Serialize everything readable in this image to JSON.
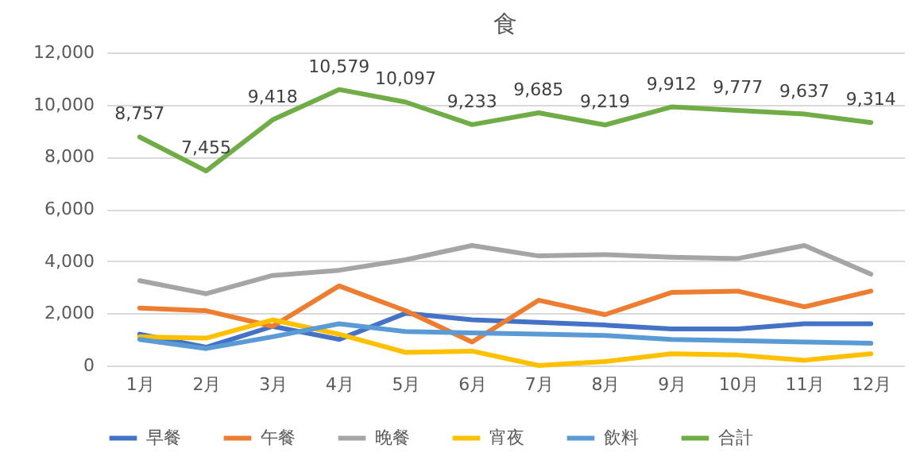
{
  "chart_data": {
    "type": "line",
    "title": "食",
    "categories": [
      "1月",
      "2月",
      "3月",
      "4月",
      "5月",
      "6月",
      "7月",
      "8月",
      "9月",
      "10月",
      "11月",
      "12月"
    ],
    "ylim": [
      0,
      12000
    ],
    "yticks": [
      {
        "value": 0,
        "label": "0"
      },
      {
        "value": 2000,
        "label": "2,000"
      },
      {
        "value": 4000,
        "label": "4,000"
      },
      {
        "value": 6000,
        "label": "6,000"
      },
      {
        "value": 8000,
        "label": "8,000"
      },
      {
        "value": 10000,
        "label": "10,000"
      },
      {
        "value": 12000,
        "label": "12,000"
      }
    ],
    "grid": "y",
    "legend": "bottom",
    "marker": "none",
    "series": [
      {
        "name": "早餐",
        "color": "#4472c4",
        "values": [
          1200,
          700,
          1500,
          1000,
          2000,
          1750,
          1650,
          1550,
          1400,
          1400,
          1600,
          1600
        ]
      },
      {
        "name": "午餐",
        "color": "#ed7d31",
        "values": [
          2200,
          2100,
          1500,
          3050,
          2100,
          900,
          2500,
          1950,
          2800,
          2850,
          2250,
          2850
        ]
      },
      {
        "name": "晚餐",
        "color": "#a5a5a5",
        "values": [
          3250,
          2750,
          3450,
          3650,
          4050,
          4600,
          4200,
          4250,
          4150,
          4100,
          4600,
          3500
        ]
      },
      {
        "name": "宵夜",
        "color": "#ffc000",
        "values": [
          1100,
          1050,
          1750,
          1200,
          500,
          550,
          0,
          150,
          450,
          400,
          200,
          450
        ]
      },
      {
        "name": "飲料",
        "color": "#5b9bd5",
        "values": [
          1000,
          650,
          1100,
          1600,
          1300,
          1250,
          1200,
          1150,
          1000,
          950,
          900,
          850
        ]
      },
      {
        "name": "合計",
        "color": "#70ad47",
        "values": [
          8757,
          7455,
          9418,
          10579,
          10097,
          9233,
          9685,
          9219,
          9912,
          9777,
          9637,
          9314
        ],
        "value_labels": [
          "8,757",
          "7,455",
          "9,418",
          "10,579",
          "10,097",
          "9,233",
          "9,685",
          "9,219",
          "9,912",
          "9,777",
          "9,637",
          "9,314"
        ]
      }
    ]
  }
}
